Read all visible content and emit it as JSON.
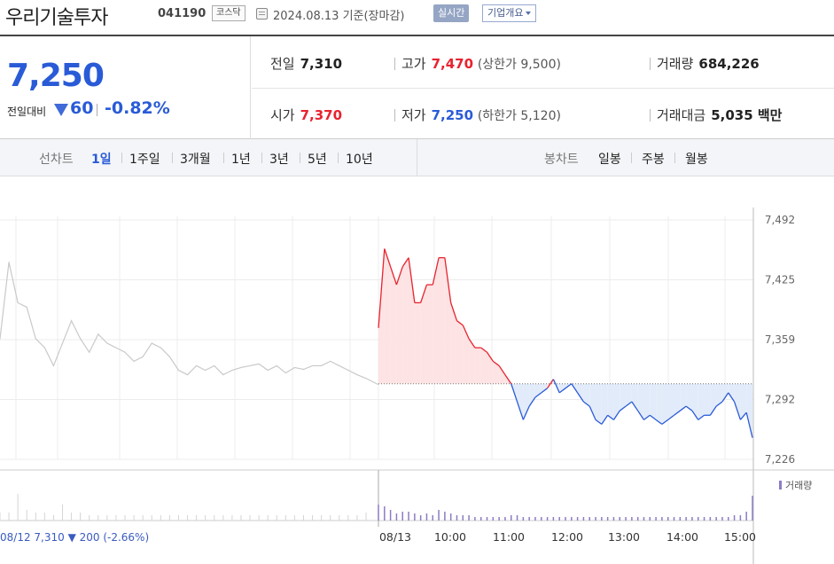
{
  "header": {
    "stock_name": "우리기술투자",
    "stock_code": "041190",
    "market_badge": "코스닥",
    "date_text": "2024.08.13  기준(장마감)",
    "realtime_label": "실시간",
    "company_label": "기업개요"
  },
  "quote": {
    "price": "7,250",
    "change_label": "전일대비",
    "change_value": "60",
    "change_pct": "-0.82%",
    "prev_close_label": "전일",
    "prev_close": "7,310",
    "open_label": "시가",
    "open": "7,370",
    "high_label": "고가",
    "high": "7,470",
    "upper_limit": "(상한가 9,500)",
    "low_label": "저가",
    "low": "7,250",
    "lower_limit": "(하한가 5,120)",
    "volume_label": "거래량",
    "volume": "684,226",
    "amount_label": "거래대금",
    "amount": "5,035 백만"
  },
  "tabs": {
    "line_group": "선차트",
    "line_items": [
      "1일",
      "1주일",
      "3개월",
      "1년",
      "3년",
      "5년",
      "10년"
    ],
    "active_line": "1일",
    "candle_group": "봉차트",
    "candle_items": [
      "일봉",
      "주봉",
      "월봉"
    ]
  },
  "colors": {
    "up": "#e8232f",
    "down": "#2a5bd7",
    "up_fill": "#fde3e3",
    "down_fill": "#e2ebfa",
    "prev_day_line": "#c9c9c9",
    "volume_bar": "#8d7cc4"
  },
  "chart_data": {
    "type": "line",
    "baseline": 7310,
    "y_ticks": [
      "7,492",
      "7,425",
      "7,359",
      "7,292",
      "7,226"
    ],
    "ylim": [
      7226,
      7492
    ],
    "x_ticks": [
      "08/13",
      "10:00",
      "11:00",
      "12:00",
      "13:00",
      "14:00",
      "15:00"
    ],
    "volume_legend": "거래량",
    "prev_day_caption": "08/12  7,310 ▼ 200 (-2.66%)",
    "prev_day_series": [
      7360,
      7445,
      7400,
      7395,
      7360,
      7350,
      7330,
      7355,
      7380,
      7360,
      7345,
      7365,
      7355,
      7350,
      7345,
      7335,
      7340,
      7355,
      7350,
      7340,
      7325,
      7320,
      7330,
      7325,
      7330,
      7320,
      7325,
      7328,
      7330,
      7332,
      7325,
      7330,
      7322,
      7328,
      7326,
      7330,
      7330,
      7335,
      7330,
      7325,
      7320,
      7316
    ],
    "today_series": [
      7372,
      7460,
      7440,
      7420,
      7440,
      7450,
      7400,
      7400,
      7420,
      7420,
      7450,
      7450,
      7400,
      7380,
      7375,
      7360,
      7350,
      7350,
      7345,
      7335,
      7330,
      7320,
      7310,
      7290,
      7270,
      7285,
      7295,
      7300,
      7305,
      7315,
      7300,
      7305,
      7310,
      7300,
      7290,
      7285,
      7270,
      7265,
      7275,
      7270,
      7280,
      7285,
      7290,
      7280,
      7270,
      7275,
      7270,
      7265,
      7270,
      7275,
      7280,
      7285,
      7280,
      7270,
      7275,
      7275,
      7285,
      7290,
      7300,
      7290,
      7270,
      7278,
      7250
    ],
    "today_volume": [
      9,
      8,
      6,
      4,
      5,
      5,
      4,
      3,
      4,
      3,
      6,
      5,
      4,
      3,
      3,
      3,
      2,
      2,
      2,
      2,
      2,
      2,
      3,
      3,
      2,
      2,
      2,
      2,
      2,
      2,
      2,
      2,
      2,
      2,
      2,
      2,
      2,
      2,
      2,
      2,
      2,
      2,
      2,
      2,
      2,
      2,
      2,
      2,
      2,
      2,
      2,
      2,
      2,
      2,
      2,
      2,
      2,
      2,
      2,
      3,
      3,
      5,
      14
    ],
    "prev_volume": [
      3,
      3,
      10,
      4,
      3,
      3,
      2,
      6,
      3,
      3,
      2,
      2,
      2,
      2,
      2,
      2,
      2,
      2,
      2,
      2,
      2,
      2,
      2,
      2,
      2,
      2,
      2,
      2,
      2,
      2,
      2,
      2,
      2,
      2,
      2,
      2,
      2,
      2,
      2,
      2,
      2,
      3
    ]
  }
}
